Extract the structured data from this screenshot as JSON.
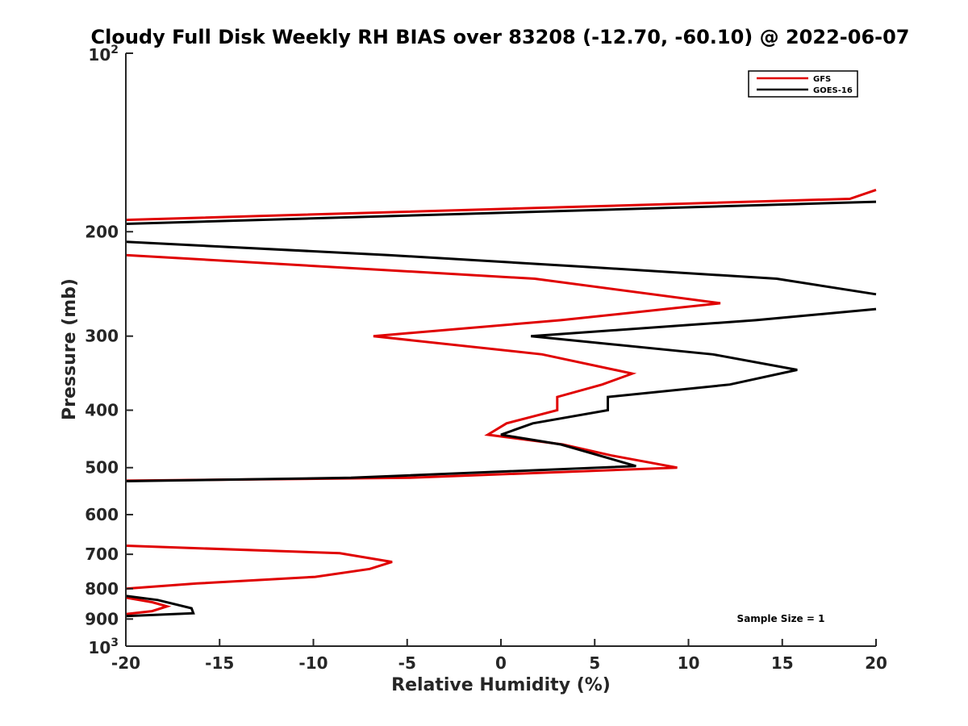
{
  "chart_data": {
    "type": "line",
    "title": "Cloudy Full Disk Weekly RH BIAS over 83208 (-12.70, -60.10) @ 2022-06-07",
    "xlabel": "Relative Humidity (%)",
    "ylabel": "Pressure (mb)",
    "xlim": [
      -20,
      20
    ],
    "ylim": [
      100,
      1000
    ],
    "yscale": "log",
    "y_reversed": true,
    "x_ticks": [
      -20,
      -15,
      -10,
      -5,
      0,
      5,
      10,
      15,
      20
    ],
    "x_tick_labels": [
      "-20",
      "-15",
      "-10",
      "-5",
      "0",
      "5",
      "10",
      "15",
      "20"
    ],
    "y_ticks": [
      {
        "value": 100,
        "base": "10",
        "exp": "2"
      },
      {
        "value": 200,
        "label": "200"
      },
      {
        "value": 300,
        "label": "300"
      },
      {
        "value": 400,
        "label": "400"
      },
      {
        "value": 500,
        "label": "500"
      },
      {
        "value": 600,
        "label": "600"
      },
      {
        "value": 700,
        "label": "700"
      },
      {
        "value": 800,
        "label": "800"
      },
      {
        "value": 900,
        "label": "900"
      },
      {
        "value": 1000,
        "base": "10",
        "exp": "3"
      }
    ],
    "legend_position": "top-right",
    "annotation": "Sample Size = 1",
    "series": [
      {
        "name": "GFS",
        "color": "#e00000",
        "segments": [
          [
            {
              "x": 20,
              "p": 170
            },
            {
              "x": 18.6,
              "p": 176
            },
            {
              "x": -20,
              "p": 191
            }
          ],
          [
            {
              "x": -20,
              "p": 219
            },
            {
              "x": 1.8,
              "p": 240
            },
            {
              "x": 11.7,
              "p": 264
            },
            {
              "x": 3.2,
              "p": 282
            },
            {
              "x": -6.8,
              "p": 300
            },
            {
              "x": 2.2,
              "p": 322
            },
            {
              "x": 7.0,
              "p": 347
            },
            {
              "x": 5.4,
              "p": 362
            },
            {
              "x": 3.0,
              "p": 380
            },
            {
              "x": 3.0,
              "p": 400
            },
            {
              "x": 0.3,
              "p": 421
            },
            {
              "x": -0.7,
              "p": 440
            },
            {
              "x": 3.3,
              "p": 457
            },
            {
              "x": 5.9,
              "p": 477
            },
            {
              "x": 9.4,
              "p": 500
            },
            {
              "x": -4.9,
              "p": 520
            },
            {
              "x": -20,
              "p": 526
            }
          ],
          [
            {
              "x": -20,
              "p": 677
            },
            {
              "x": -8.6,
              "p": 697
            },
            {
              "x": -5.8,
              "p": 721
            },
            {
              "x": -7.0,
              "p": 741
            },
            {
              "x": -9.9,
              "p": 764
            },
            {
              "x": -16.2,
              "p": 784
            },
            {
              "x": -20,
              "p": 800
            }
          ],
          [
            {
              "x": -20,
              "p": 828
            },
            {
              "x": -18.6,
              "p": 843
            },
            {
              "x": -17.8,
              "p": 857
            },
            {
              "x": -18.6,
              "p": 873
            },
            {
              "x": -20,
              "p": 883
            }
          ]
        ]
      },
      {
        "name": "GOES-16",
        "color": "#000000",
        "segments": [
          [
            {
              "x": 20,
              "p": 178
            },
            {
              "x": -20,
              "p": 194
            }
          ],
          [
            {
              "x": -20,
              "p": 208
            },
            {
              "x": -6.0,
              "p": 219
            },
            {
              "x": 4.3,
              "p": 229
            },
            {
              "x": 14.7,
              "p": 240
            },
            {
              "x": 20,
              "p": 255
            }
          ],
          [
            {
              "x": 20,
              "p": 270
            },
            {
              "x": 13.6,
              "p": 282
            },
            {
              "x": 1.6,
              "p": 300
            },
            {
              "x": 11.3,
              "p": 322
            },
            {
              "x": 15.8,
              "p": 342
            },
            {
              "x": 12.2,
              "p": 362
            },
            {
              "x": 5.7,
              "p": 380
            },
            {
              "x": 5.7,
              "p": 400
            },
            {
              "x": 1.7,
              "p": 421
            },
            {
              "x": 0.0,
              "p": 440
            },
            {
              "x": 3.2,
              "p": 457
            },
            {
              "x": 7.2,
              "p": 497
            },
            {
              "x": -8.0,
              "p": 520
            },
            {
              "x": -20,
              "p": 527
            }
          ],
          [
            {
              "x": -20,
              "p": 823
            },
            {
              "x": -18.3,
              "p": 836
            },
            {
              "x": -16.5,
              "p": 863
            },
            {
              "x": -16.4,
              "p": 880
            },
            {
              "x": -20,
              "p": 890
            }
          ]
        ]
      }
    ]
  }
}
